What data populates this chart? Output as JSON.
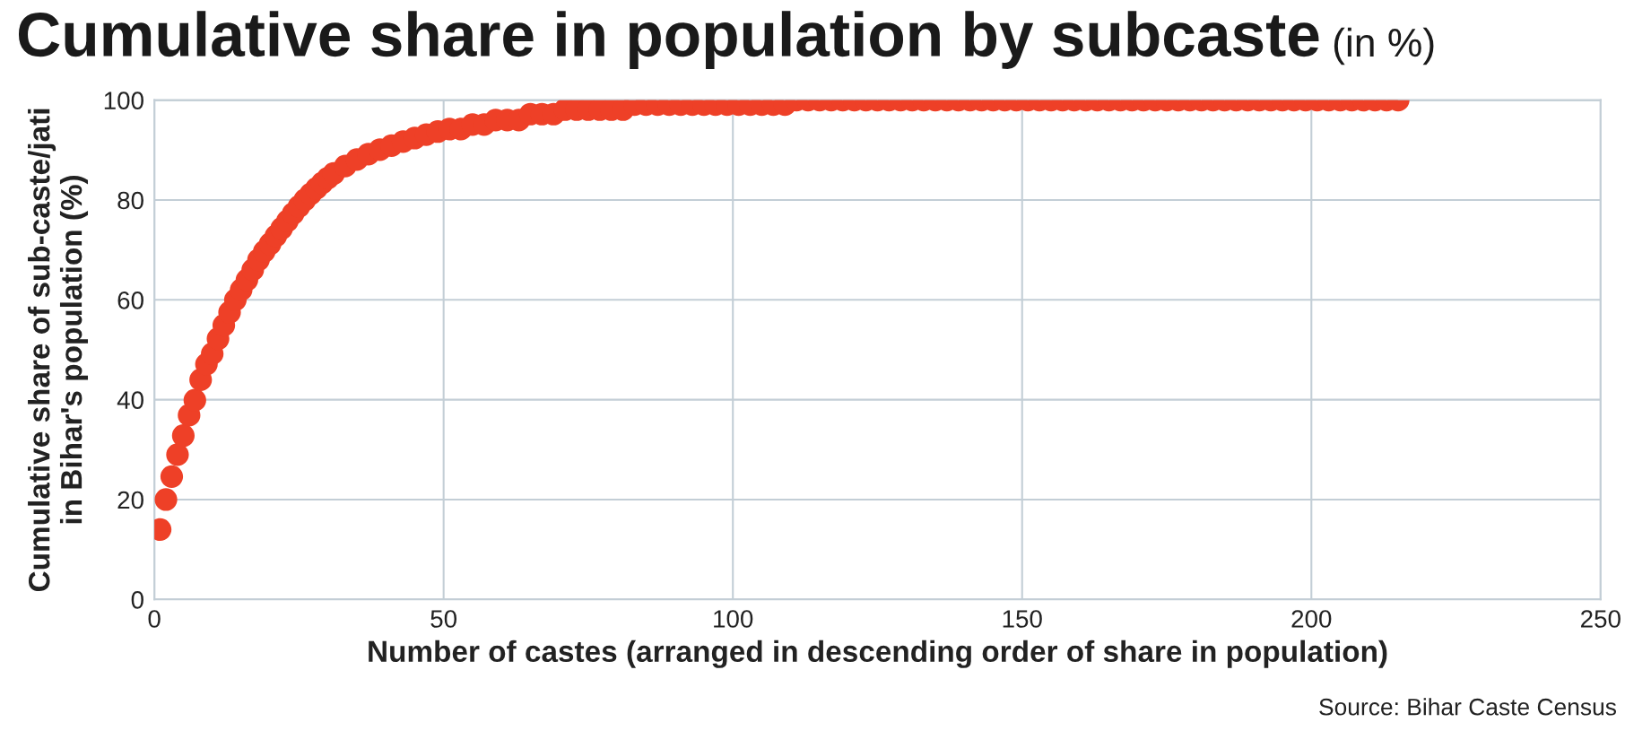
{
  "chart_data": {
    "type": "scatter",
    "title": "Cumulative share in population by subcaste",
    "subtitle": "(in %)",
    "xlabel": "Number of castes (arranged in descending order of share in population)",
    "ylabel": "Cumulative share of sub-caste/jati\nin Bihar's population (%)",
    "annotations": [
      "Source: Bihar Caste Census"
    ],
    "series": [
      {
        "color": "#ee4027",
        "x": [
          1,
          2,
          3,
          4,
          5,
          6,
          7,
          8,
          9,
          10,
          11,
          12,
          13,
          14,
          15,
          16,
          17,
          18,
          19,
          20,
          21,
          22,
          23,
          24,
          25,
          26,
          27,
          28,
          29,
          30,
          31,
          33,
          35,
          37,
          39,
          41,
          43,
          45,
          47,
          49,
          51,
          53,
          55,
          57,
          59,
          61,
          63,
          65,
          67,
          69,
          71,
          73,
          75,
          77,
          79,
          81,
          83,
          85,
          87,
          89,
          91,
          93,
          95,
          97,
          99,
          101,
          103,
          105,
          107,
          109,
          111,
          113,
          115,
          117,
          119,
          121,
          123,
          125,
          127,
          129,
          131,
          133,
          135,
          137,
          139,
          141,
          143,
          145,
          147,
          149,
          151,
          153,
          155,
          157,
          159,
          161,
          163,
          165,
          167,
          169,
          171,
          173,
          175,
          177,
          179,
          181,
          183,
          185,
          187,
          189,
          191,
          193,
          195,
          197,
          199,
          201,
          203,
          205,
          207,
          209,
          211,
          213,
          215
        ],
        "values": [
          14,
          20,
          24.6,
          29,
          32.8,
          36.9,
          39.9,
          44,
          47.1,
          49.2,
          52.2,
          54.9,
          57.5,
          60,
          62,
          64,
          66,
          68,
          69.7,
          71.2,
          72.8,
          74.3,
          75.8,
          77.3,
          78.7,
          80,
          81.2,
          82.3,
          83.4,
          84.4,
          85.3,
          86.8,
          88.1,
          89.2,
          90.1,
          90.9,
          91.7,
          92.4,
          93.1,
          93.7,
          94.2,
          94.2,
          95.1,
          95.1,
          96,
          96,
          96,
          97.2,
          97.2,
          97.2,
          98.1,
          98.1,
          98.1,
          98.1,
          98.1,
          98.1,
          99.1,
          99.1,
          99.1,
          99.1,
          99.1,
          99.1,
          99.1,
          99.1,
          99.1,
          99.1,
          99.1,
          99.1,
          99.1,
          99.1,
          100,
          100,
          100,
          100,
          100,
          100,
          100,
          100,
          100,
          100,
          100,
          100,
          100,
          100,
          100,
          100,
          100,
          100,
          100,
          100,
          100,
          100,
          100,
          100,
          100,
          100,
          100,
          100,
          100,
          100,
          100,
          100,
          100,
          100,
          100,
          100,
          100,
          100,
          100,
          100,
          100,
          100,
          100,
          100,
          100,
          100,
          100,
          100,
          100,
          100,
          100,
          100,
          100
        ]
      }
    ],
    "xlim": [
      0,
      250
    ],
    "xticks": [
      0,
      50,
      100,
      150,
      200,
      250
    ],
    "ylim": [
      0,
      100
    ],
    "yticks": [
      0,
      20,
      40,
      60,
      80,
      100
    ],
    "grid": true,
    "marker": "circle"
  }
}
